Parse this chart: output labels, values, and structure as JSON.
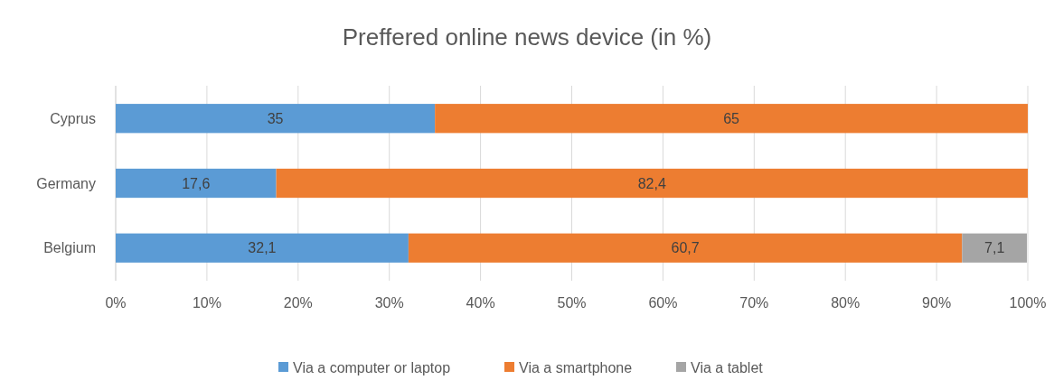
{
  "chart_data": {
    "type": "bar",
    "orientation": "horizontal",
    "stacked": true,
    "title": "Preffered online news device (in %)",
    "categories": [
      "Cyprus",
      "Germany",
      "Belgium"
    ],
    "series": [
      {
        "name": "Via a computer or laptop",
        "color": "#5b9bd5",
        "values": [
          35,
          17.6,
          32.1
        ],
        "value_labels": [
          "35",
          "17,6",
          "32,1"
        ]
      },
      {
        "name": "Via a smartphone",
        "color": "#ed7d31",
        "values": [
          65,
          82.4,
          60.7
        ],
        "value_labels": [
          "65",
          "82,4",
          "60,7"
        ]
      },
      {
        "name": "Via a tablet",
        "color": "#a5a5a5",
        "values": [
          null,
          null,
          7.1
        ],
        "value_labels": [
          null,
          null,
          "7,1"
        ]
      }
    ],
    "xlim": [
      0,
      100
    ],
    "xticks": [
      {
        "value": 0,
        "label": "0%"
      },
      {
        "value": 10,
        "label": "10%"
      },
      {
        "value": 20,
        "label": "20%"
      },
      {
        "value": 30,
        "label": "30%"
      },
      {
        "value": 40,
        "label": "40%"
      },
      {
        "value": 50,
        "label": "50%"
      },
      {
        "value": 60,
        "label": "60%"
      },
      {
        "value": 70,
        "label": "70%"
      },
      {
        "value": 80,
        "label": "80%"
      },
      {
        "value": 90,
        "label": "90%"
      },
      {
        "value": 100,
        "label": "100%"
      }
    ],
    "grid": "x",
    "legend": "bottom"
  }
}
